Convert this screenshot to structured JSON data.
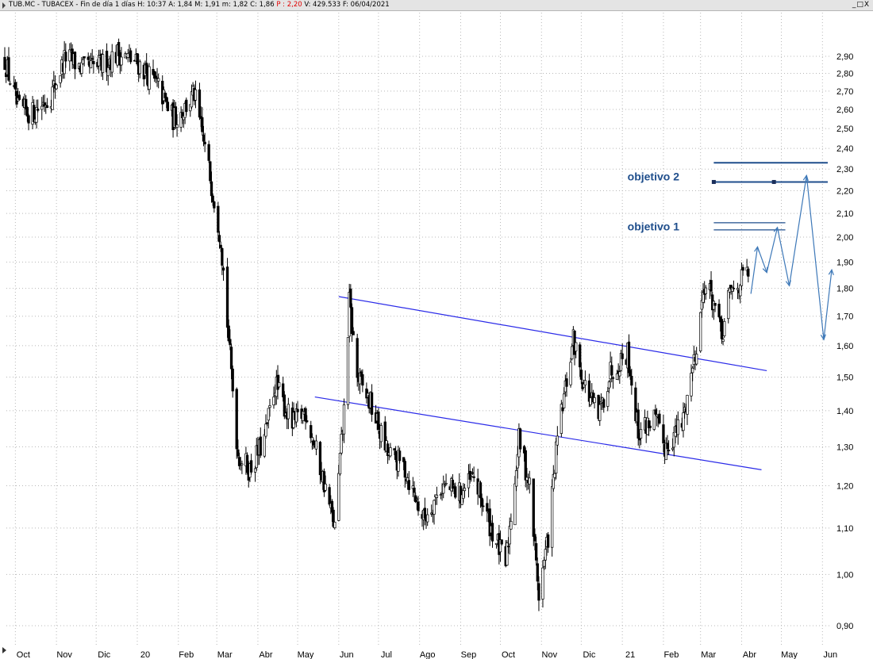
{
  "window": {
    "title_main": "TUB.MC - TUBACEX - Fin de día 1 días",
    "H": "H: 10:37",
    "A": "A: 1,84",
    "M": "M: 1,91",
    "m": "m: 1,82",
    "C": "C: 1,86",
    "P": "P : 2,20",
    "V": "V: 429.533",
    "F": "F: 06/04/2021",
    "controls": "_□X"
  },
  "colors": {
    "candles": "#000000",
    "channel": "#2a2ae8",
    "target_lines": "#1f4e8c",
    "projection": "#3d78b8",
    "grid": "#b8b8b8",
    "annotation_text": "#1f4e8c",
    "highlight_value": "#e00000"
  },
  "chart_data": {
    "type": "candlestick",
    "scale": "log",
    "ylim": [
      0.87,
      3.05
    ],
    "grid": "dotted",
    "yticks": [
      {
        "value": 0.9,
        "label": "0,90"
      },
      {
        "value": 1.0,
        "label": "1,00"
      },
      {
        "value": 1.1,
        "label": "1,10"
      },
      {
        "value": 1.2,
        "label": "1,20"
      },
      {
        "value": 1.3,
        "label": "1,30"
      },
      {
        "value": 1.4,
        "label": "1,40"
      },
      {
        "value": 1.5,
        "label": "1,50"
      },
      {
        "value": 1.6,
        "label": "1,60"
      },
      {
        "value": 1.7,
        "label": "1,70"
      },
      {
        "value": 1.8,
        "label": "1,80"
      },
      {
        "value": 1.9,
        "label": "1,90"
      },
      {
        "value": 2.0,
        "label": "2,00"
      },
      {
        "value": 2.1,
        "label": "2,10"
      },
      {
        "value": 2.2,
        "label": "2,20"
      },
      {
        "value": 2.3,
        "label": "2,30"
      },
      {
        "value": 2.4,
        "label": "2,40"
      },
      {
        "value": 2.5,
        "label": "2,50"
      },
      {
        "value": 2.6,
        "label": "2,60"
      },
      {
        "value": 2.7,
        "label": "2,70"
      },
      {
        "value": 2.8,
        "label": "2,80"
      },
      {
        "value": 2.9,
        "label": "2,90"
      }
    ],
    "months": [
      "Oct",
      "Nov",
      "Dic",
      "20",
      "Feb",
      "Mar",
      "Abr",
      "May",
      "Jun",
      "Jul",
      "Ago",
      "Sep",
      "Oct",
      "Nov",
      "Dic",
      "21",
      "Feb",
      "Mar",
      "Abr",
      "May",
      "Jun"
    ],
    "price_path": [
      [
        "2019-09-23",
        2.88
      ],
      [
        "2019-10-03",
        2.6
      ],
      [
        "2019-10-14",
        2.58
      ],
      [
        "2019-10-28",
        2.68
      ],
      [
        "2019-11-08",
        2.9
      ],
      [
        "2019-11-22",
        2.82
      ],
      [
        "2019-12-05",
        2.85
      ],
      [
        "2019-12-18",
        2.92
      ],
      [
        "2020-01-03",
        2.85
      ],
      [
        "2020-01-17",
        2.72
      ],
      [
        "2020-01-28",
        2.55
      ],
      [
        "2020-02-05",
        2.6
      ],
      [
        "2020-02-13",
        2.68
      ],
      [
        "2020-02-24",
        2.3
      ],
      [
        "2020-03-04",
        2.0
      ],
      [
        "2020-03-10",
        1.62
      ],
      [
        "2020-03-17",
        1.28
      ],
      [
        "2020-03-26",
        1.24
      ],
      [
        "2020-04-06",
        1.32
      ],
      [
        "2020-04-14",
        1.48
      ],
      [
        "2020-04-27",
        1.36
      ],
      [
        "2020-05-07",
        1.4
      ],
      [
        "2020-05-20",
        1.22
      ],
      [
        "2020-05-29",
        1.1
      ],
      [
        "2020-06-05",
        1.4
      ],
      [
        "2020-06-09",
        1.75
      ],
      [
        "2020-06-15",
        1.5
      ],
      [
        "2020-06-25",
        1.42
      ],
      [
        "2020-07-08",
        1.28
      ],
      [
        "2020-07-20",
        1.25
      ],
      [
        "2020-08-04",
        1.12
      ],
      [
        "2020-08-18",
        1.2
      ],
      [
        "2020-09-01",
        1.18
      ],
      [
        "2020-09-11",
        1.22
      ],
      [
        "2020-09-24",
        1.1
      ],
      [
        "2020-10-05",
        1.02
      ],
      [
        "2020-10-15",
        1.32
      ],
      [
        "2020-10-23",
        1.2
      ],
      [
        "2020-10-30",
        0.96
      ],
      [
        "2020-11-06",
        1.08
      ],
      [
        "2020-11-13",
        1.32
      ],
      [
        "2020-11-25",
        1.62
      ],
      [
        "2020-12-03",
        1.48
      ],
      [
        "2020-12-14",
        1.38
      ],
      [
        "2020-12-23",
        1.52
      ],
      [
        "2021-01-05",
        1.58
      ],
      [
        "2021-01-13",
        1.34
      ],
      [
        "2021-01-25",
        1.38
      ],
      [
        "2021-02-02",
        1.3
      ],
      [
        "2021-02-15",
        1.36
      ],
      [
        "2021-02-25",
        1.58
      ],
      [
        "2021-03-04",
        1.82
      ],
      [
        "2021-03-11",
        1.75
      ],
      [
        "2021-03-17",
        1.62
      ],
      [
        "2021-03-23",
        1.78
      ],
      [
        "2021-04-06",
        1.86
      ]
    ],
    "channel_lines": [
      {
        "x1": "2020-06-01",
        "y1": 1.77,
        "x2": "2021-04-20",
        "y2": 1.52
      },
      {
        "x1": "2020-05-14",
        "y1": 1.44,
        "x2": "2021-04-16",
        "y2": 1.24
      }
    ],
    "target_lines": [
      {
        "name": "objetivo 1",
        "x1": "2021-03-11",
        "x2": "2021-05-04",
        "values": [
          2.06,
          2.03
        ]
      },
      {
        "name": "objetivo 2",
        "x1": "2021-03-11",
        "x2": "2021-06-05",
        "values": [
          2.33,
          2.24
        ]
      }
    ],
    "annotations": [
      {
        "text": "objetivo 2",
        "value": 2.265
      },
      {
        "text": "objetivo 1",
        "value": 2.045
      }
    ],
    "projection": [
      [
        "2021-04-08",
        1.78
      ],
      [
        "2021-04-13",
        1.96
      ],
      [
        "2021-04-20",
        1.86
      ],
      [
        "2021-04-28",
        2.04
      ],
      [
        "2021-05-07",
        1.81
      ],
      [
        "2021-05-20",
        2.27
      ],
      [
        "2021-06-02",
        1.62
      ],
      [
        "2021-06-08",
        1.87
      ]
    ]
  }
}
